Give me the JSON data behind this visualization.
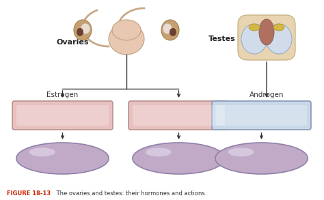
{
  "background_color": "#ffffff",
  "title_color_bold": "#cc2200",
  "title_color_normal": "#333333",
  "ovaries_label": "Ovaries",
  "testes_label": "Testes",
  "estrogen_label": "Estrogen",
  "androgen_label": "Androgen",
  "rect_pink_facecolor": "#e8c0c0",
  "rect_pink_edge": "#b89090",
  "rect_blue_facecolor": "#c8d8e8",
  "rect_blue_edge": "#8898b8",
  "ellipse_fill": "#c0aac8",
  "ellipse_edge": "#9080a8",
  "arrow_color": "#333333",
  "caption_bold": "FIGURE 18-13",
  "caption_rest": " The ovaries and testes: their hormones and actions."
}
